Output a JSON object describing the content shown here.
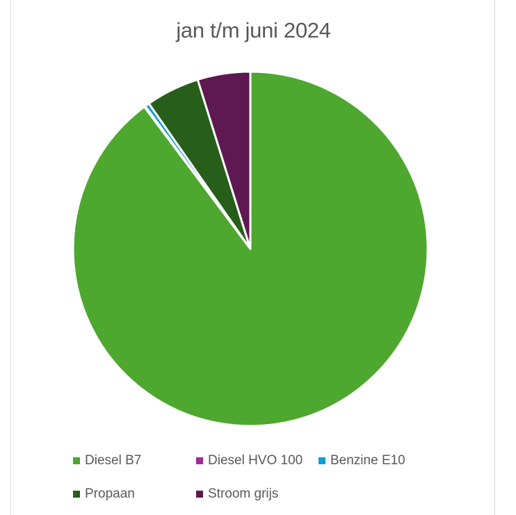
{
  "chart_data": {
    "type": "pie",
    "title": "jan t/m juni 2024",
    "categories": [
      "Diesel B7",
      "Diesel HVO 100",
      "Benzine E10",
      "Propaan",
      "Stroom grijs"
    ],
    "values": [
      89.8,
      0.1,
      0.4,
      4.9,
      4.8
    ],
    "unit": "%",
    "colors": [
      "#4ea72e",
      "#a02b93",
      "#0f9ed5",
      "#275e1a",
      "#5e1950"
    ],
    "legend_position": "bottom"
  }
}
